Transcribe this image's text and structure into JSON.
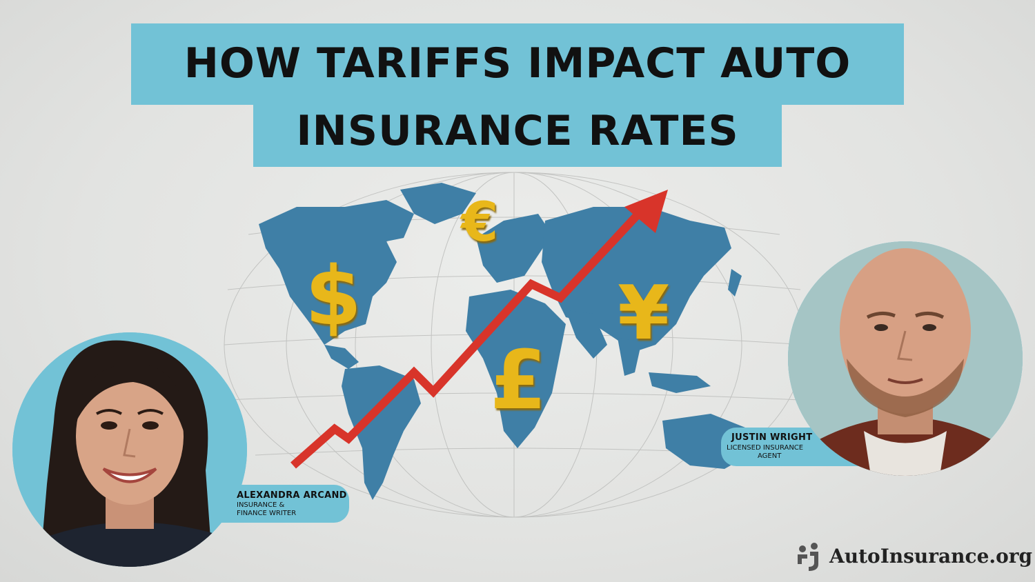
{
  "title": {
    "line1": "HOW TARIFFS IMPACT AUTO",
    "line2": "INSURANCE RATES"
  },
  "currency_symbols": {
    "dollar": "$",
    "euro": "€",
    "pound": "£",
    "yen": "¥"
  },
  "authors": [
    {
      "name": "ALEXANDRA ARCAND",
      "role_line1": "INSURANCE &",
      "role_line2": "FINANCE WRITER"
    },
    {
      "name": "JUSTIN WRIGHT",
      "role_line1": "LICENSED INSURANCE",
      "role_line2": "AGENT"
    }
  ],
  "brand": {
    "name": "AutoInsurance.org"
  },
  "colors": {
    "accent": "#72c2d6",
    "map_land": "#3f7fa6",
    "arrow": "#d8342a",
    "currency_gold": "#e8b71a"
  }
}
